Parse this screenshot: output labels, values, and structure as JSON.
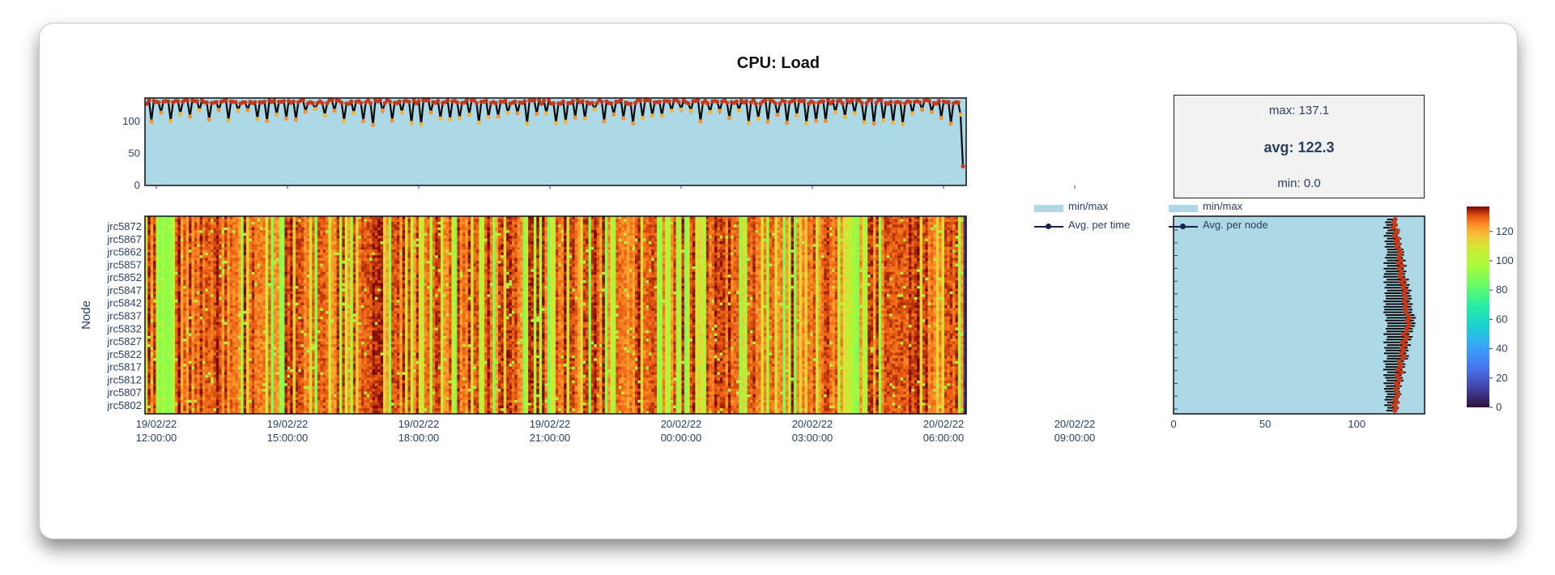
{
  "title": "CPU: Load",
  "stats": {
    "max": "max: 137.1",
    "avg": "avg: 122.3",
    "min": "min: 0.0"
  },
  "legend_time": {
    "band": "min/max",
    "line": "Avg. per time"
  },
  "legend_node": {
    "band": "min/max",
    "line": "Avg. per node"
  },
  "colors": {
    "band": "#add8e6",
    "avg_line": "#1b1f4b",
    "marker": "#c43a1d"
  },
  "chart_data": [
    {
      "type": "line",
      "name": "time-series",
      "ylim": [
        0,
        137
      ],
      "yticks": [
        0,
        50,
        100
      ],
      "xticks": [
        {
          "date": "19/02/22",
          "time": "12:00:00"
        },
        {
          "date": "19/02/22",
          "time": "15:00:00"
        },
        {
          "date": "19/02/22",
          "time": "18:00:00"
        },
        {
          "date": "19/02/22",
          "time": "21:00:00"
        },
        {
          "date": "20/02/22",
          "time": "00:00:00"
        },
        {
          "date": "20/02/22",
          "time": "03:00:00"
        },
        {
          "date": "20/02/22",
          "time": "06:00:00"
        },
        {
          "date": "20/02/22",
          "time": "09:00:00"
        }
      ],
      "x_range": [
        "19/02/22 12:00:00",
        "20/02/22 11:05:00"
      ],
      "band_min_typical": 0,
      "band_max_typical": 137,
      "avg_typical": 130,
      "avg_dips_typical": 95
    },
    {
      "type": "heatmap",
      "name": "node-heatmap",
      "ylabel": "Node",
      "yticks": [
        "jrc5872",
        "jrc5867",
        "jrc5862",
        "jrc5857",
        "jrc5852",
        "jrc5847",
        "jrc5842",
        "jrc5837",
        "jrc5832",
        "jrc5827",
        "jrc5822",
        "jrc5817",
        "jrc5812",
        "jrc5807",
        "jrc5802"
      ],
      "node_range": [
        "jrc5802",
        "jrc5872"
      ],
      "zlim": [
        0,
        137
      ],
      "colorscale": "turbo",
      "colorbar_ticks": [
        0,
        20,
        40,
        60,
        80,
        100,
        120
      ]
    },
    {
      "type": "scatter",
      "name": "avg-per-node",
      "xlim": [
        0,
        137
      ],
      "xticks": [
        0,
        50,
        100
      ],
      "avg_range": [
        120,
        128
      ]
    }
  ]
}
